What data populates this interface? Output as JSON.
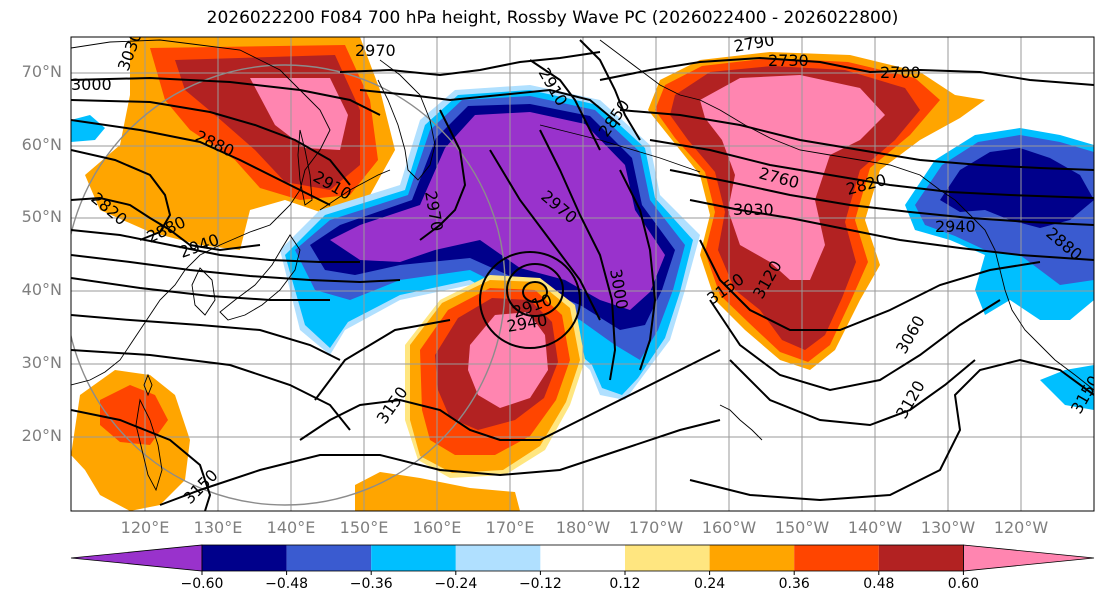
{
  "title": "2026022200 F084 700 hPa height, Rossby Wave PC (2026022400 - 2026022800)",
  "lat_labels": [
    "70°N",
    "60°N",
    "50°N",
    "40°N",
    "30°N",
    "20°N"
  ],
  "lon_labels": [
    "120°E",
    "130°E",
    "140°E",
    "150°E",
    "160°E",
    "170°E",
    "180°W",
    "170°W",
    "160°W",
    "150°W",
    "140°W",
    "130°W",
    "120°W"
  ],
  "contour_labels": [
    "2970",
    "2910",
    "2850",
    "2730",
    "2700",
    "3000",
    "3030",
    "2880",
    "2910",
    "2820",
    "2880",
    "2820",
    "2940",
    "2970",
    "2970",
    "3030",
    "2760",
    "2820",
    "2940",
    "2880",
    "3150",
    "3120",
    "2910",
    "2940",
    "3000",
    "3150",
    "3060",
    "3120",
    "3150",
    "3150",
    "2790"
  ],
  "colorbar": {
    "ticks": [
      "−0.60",
      "−0.48",
      "−0.36",
      "−0.24",
      "−0.12",
      "0.12",
      "0.24",
      "0.36",
      "0.48",
      "0.60"
    ],
    "colors": [
      "#9932cc",
      "#00008b",
      "#3a5bd0",
      "#00bfff",
      "#b0e0ff",
      "#ffffff",
      "#ffe680",
      "#ffa500",
      "#ff4500",
      "#b22222",
      "#ff85b0"
    ]
  },
  "palette": {
    "purple": "#9932cc",
    "navy": "#00008b",
    "royal": "#3a5bd0",
    "sky": "#00bfff",
    "pale_blue": "#b0e0ff",
    "light_yellow": "#ffe680",
    "orange": "#ffa500",
    "red_orange": "#ff4500",
    "firebrick": "#b22222",
    "pink": "#ff85b0"
  }
}
